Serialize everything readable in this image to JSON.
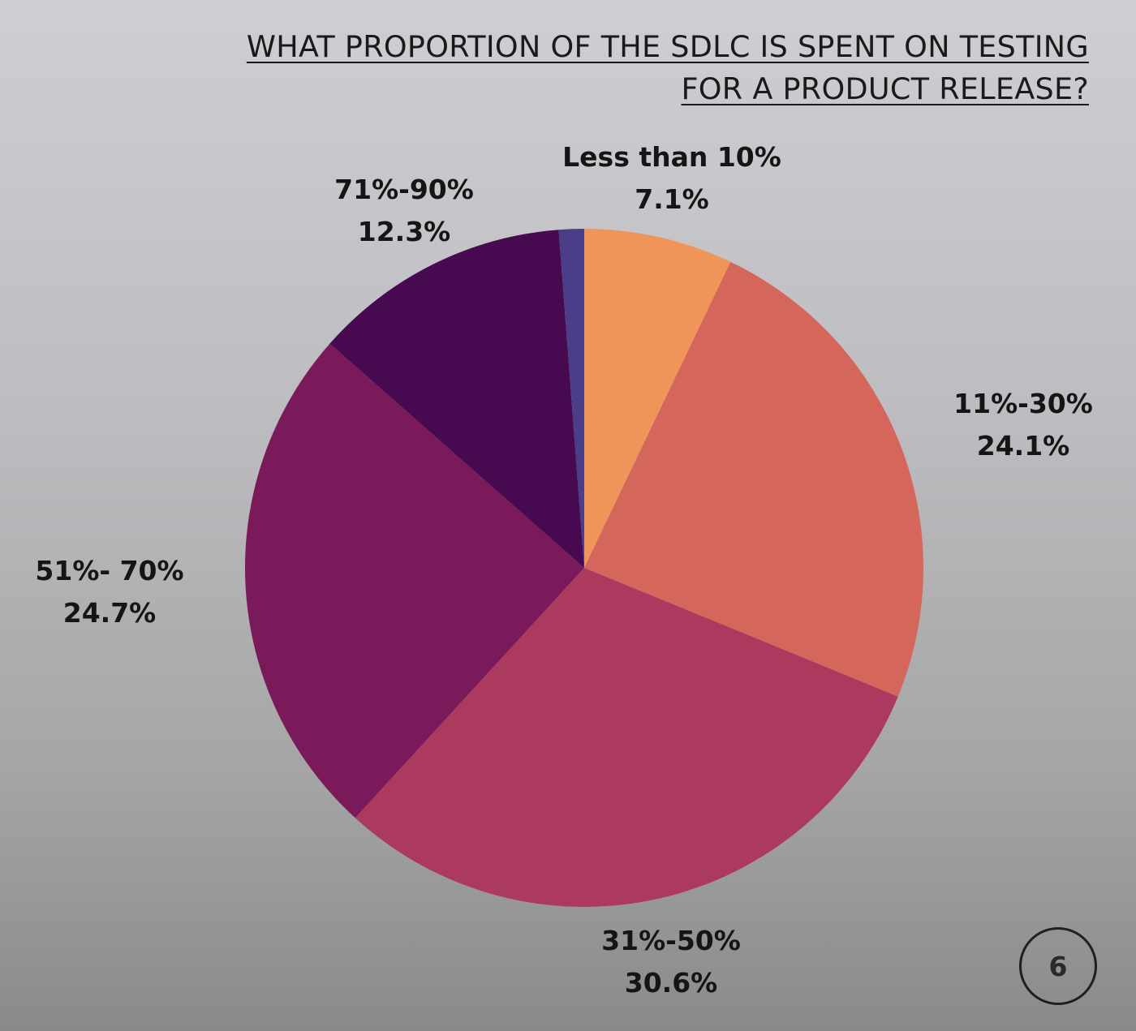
{
  "page_number": "6",
  "chart_data": {
    "type": "pie",
    "title_lines": [
      "WHAT PROPORTION OF THE SDLC IS SPENT ON TESTING",
      "FOR A PRODUCT RELEASE?"
    ],
    "slices": [
      {
        "name": "Less than 10%",
        "value_label": "7.1%",
        "value": 7.1,
        "color": "#f0955a"
      },
      {
        "name": "11%-30%",
        "value_label": "24.1%",
        "value": 24.1,
        "color": "#d5665c"
      },
      {
        "name": "31%-50%",
        "value_label": "30.6%",
        "value": 30.6,
        "color": "#ab3a5e"
      },
      {
        "name": "51%- 70%",
        "value_label": "24.7%",
        "value": 24.7,
        "color": "#7a1a5a"
      },
      {
        "name": "71%-90%",
        "value_label": "12.3%",
        "value": 12.3,
        "color": "#47094f"
      },
      {
        "name": "",
        "value_label": "",
        "value": 1.2,
        "color": "#4a3e89"
      }
    ],
    "start_angle": "12 o'clock",
    "direction": "clockwise",
    "legend": "none"
  }
}
